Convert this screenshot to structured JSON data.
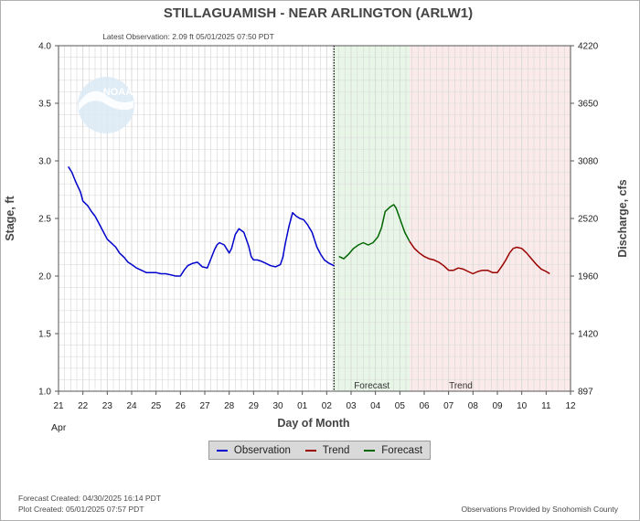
{
  "header": {
    "title": "STILLAGUAMISH - NEAR ARLINGTON  (ARLW1)",
    "latest_observation": "Latest Observation: 2.09 ft 05/01/2025 07:50 PDT"
  },
  "chart_data": {
    "type": "line",
    "title": "STILLAGUAMISH - NEAR ARLINGTON  (ARLW1)",
    "xlabel": "Day of Month",
    "ylabel": "Stage, ft",
    "y2label": "Discharge, cfs",
    "x_month_label": "Apr",
    "x_ticks": [
      "21",
      "22",
      "23",
      "24",
      "25",
      "26",
      "27",
      "28",
      "29",
      "30",
      "01",
      "02",
      "03",
      "04",
      "05",
      "06",
      "07",
      "08",
      "09",
      "10",
      "11",
      "12"
    ],
    "ylim": [
      1.0,
      4.0
    ],
    "y_ticks": [
      "1.0",
      "1.5",
      "2.0",
      "2.5",
      "3.0",
      "3.5",
      "4.0"
    ],
    "y2_ticks": [
      "897",
      "1420",
      "1960",
      "2520",
      "3080",
      "3650",
      "4220"
    ],
    "x_unit": "days since Apr 21 00:00",
    "region_labels": {
      "forecast": "Forecast",
      "trend": "Trend"
    },
    "grid": true,
    "series": [
      {
        "name": "Observation",
        "color": "#0000cc",
        "x": [
          0.4,
          0.55,
          0.7,
          0.9,
          1.0,
          1.2,
          1.35,
          1.5,
          1.65,
          1.8,
          2.0,
          2.2,
          2.35,
          2.5,
          2.7,
          2.85,
          3.0,
          3.2,
          3.4,
          3.6,
          3.8,
          4.0,
          4.2,
          4.4,
          4.6,
          4.8,
          5.0,
          5.15,
          5.3,
          5.5,
          5.7,
          5.9,
          6.1,
          6.25,
          6.4,
          6.5,
          6.6,
          6.8,
          7.0,
          7.1,
          7.25,
          7.4,
          7.6,
          7.8,
          7.9,
          8.0,
          8.15,
          8.3,
          8.5,
          8.7,
          8.9,
          9.1,
          9.2,
          9.3,
          9.45,
          9.6,
          9.75,
          9.9,
          10.05,
          10.2,
          10.4,
          10.6,
          10.75,
          10.9,
          11.1,
          11.3
        ],
        "values": [
          2.95,
          2.9,
          2.82,
          2.73,
          2.65,
          2.61,
          2.56,
          2.52,
          2.46,
          2.4,
          2.32,
          2.28,
          2.25,
          2.2,
          2.16,
          2.12,
          2.1,
          2.07,
          2.05,
          2.03,
          2.03,
          2.03,
          2.02,
          2.02,
          2.01,
          2.0,
          2.0,
          2.05,
          2.09,
          2.11,
          2.12,
          2.08,
          2.07,
          2.15,
          2.23,
          2.27,
          2.29,
          2.27,
          2.2,
          2.24,
          2.36,
          2.41,
          2.38,
          2.26,
          2.17,
          2.14,
          2.14,
          2.13,
          2.11,
          2.09,
          2.08,
          2.1,
          2.16,
          2.28,
          2.43,
          2.55,
          2.52,
          2.5,
          2.49,
          2.45,
          2.38,
          2.25,
          2.19,
          2.14,
          2.11,
          2.09
        ]
      },
      {
        "name": "Forecast",
        "color": "#006600",
        "x": [
          11.5,
          11.7,
          11.9,
          12.1,
          12.3,
          12.5,
          12.7,
          12.9,
          13.1,
          13.25,
          13.4,
          13.6,
          13.75,
          13.85,
          14.0,
          14.2,
          14.4
        ],
        "values": [
          2.17,
          2.15,
          2.19,
          2.24,
          2.27,
          2.29,
          2.27,
          2.29,
          2.34,
          2.42,
          2.56,
          2.6,
          2.62,
          2.59,
          2.5,
          2.38,
          2.3
        ]
      },
      {
        "name": "Trend",
        "color": "#990000",
        "x": [
          14.4,
          14.6,
          14.8,
          15.0,
          15.2,
          15.4,
          15.6,
          15.8,
          16.0,
          16.2,
          16.4,
          16.6,
          16.8,
          17.0,
          17.2,
          17.4,
          17.6,
          17.8,
          18.0,
          18.2,
          18.35,
          18.5,
          18.65,
          18.8,
          19.0,
          19.2,
          19.4,
          19.6,
          19.8,
          20.0,
          20.15
        ],
        "values": [
          2.3,
          2.24,
          2.2,
          2.17,
          2.15,
          2.14,
          2.12,
          2.09,
          2.05,
          2.05,
          2.07,
          2.06,
          2.04,
          2.02,
          2.04,
          2.05,
          2.05,
          2.03,
          2.03,
          2.09,
          2.14,
          2.2,
          2.24,
          2.25,
          2.24,
          2.2,
          2.15,
          2.1,
          2.06,
          2.04,
          2.02
        ]
      }
    ]
  },
  "legend": {
    "items": [
      {
        "label": "Observation",
        "color": "#0000cc"
      },
      {
        "label": "Trend",
        "color": "#990000"
      },
      {
        "label": "Forecast",
        "color": "#006600"
      }
    ]
  },
  "footer": {
    "forecast_created": "Forecast Created: 04/30/2025 16:14 PDT",
    "plot_created": "Plot Created: 05/01/2025 07:57 PDT",
    "provided_by": "Observations Provided by Snohomish County"
  },
  "logo": {
    "text": "NOAA"
  }
}
